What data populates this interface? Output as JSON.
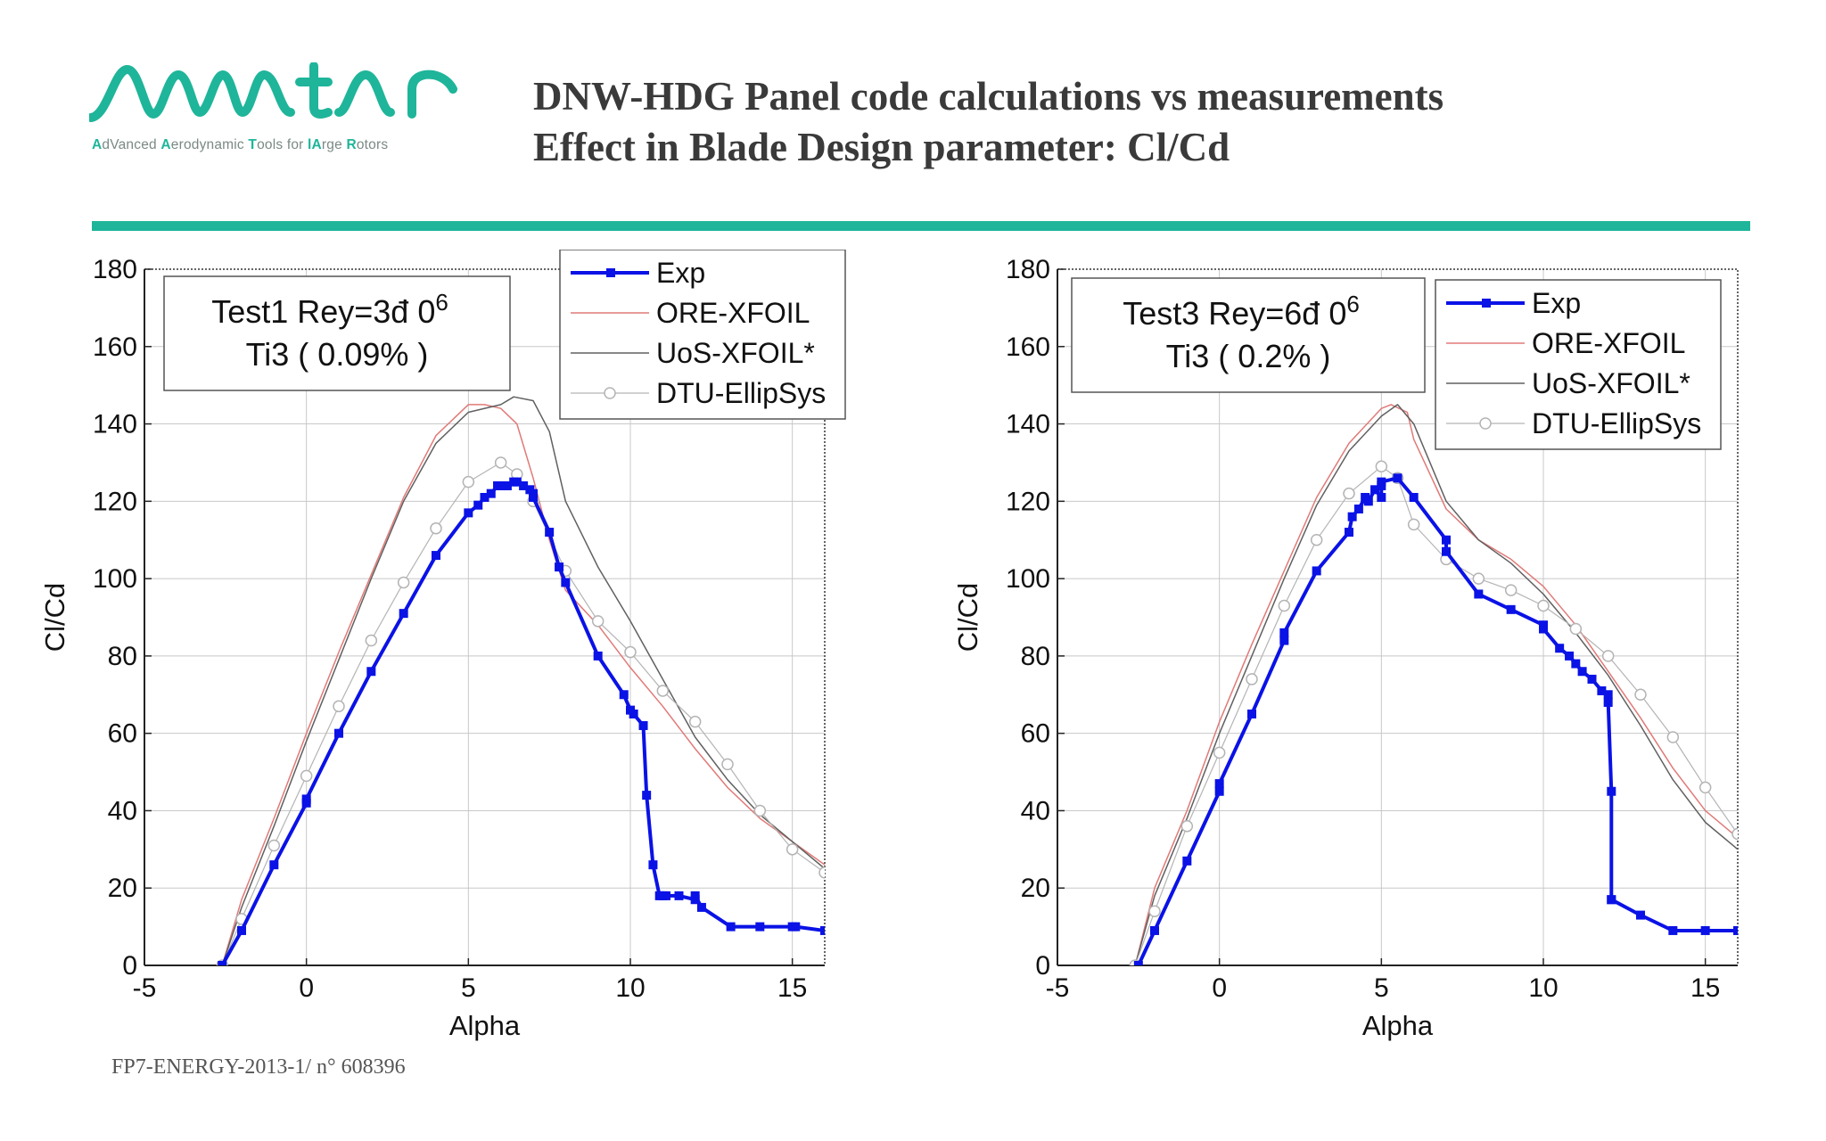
{
  "colors": {
    "accent": "#1fb59a",
    "exp": "#0a12e6",
    "ore": "#e07a78",
    "uos": "#606060",
    "dtu": "#b4b4b4"
  },
  "logo": {
    "wordmark": "Avatar",
    "tagline": [
      {
        "t": "A",
        "b": true
      },
      {
        "t": "dVanced ",
        "b": false
      },
      {
        "t": "A",
        "b": true
      },
      {
        "t": "erodynamic ",
        "b": false
      },
      {
        "t": "T",
        "b": true
      },
      {
        "t": "ools for ",
        "b": false
      },
      {
        "t": "lA",
        "b": true
      },
      {
        "t": "rge ",
        "b": false
      },
      {
        "t": "R",
        "b": true
      },
      {
        "t": "otors",
        "b": false
      }
    ]
  },
  "header": {
    "title_line1": "DNW-HDG Panel code calculations vs measurements",
    "title_line2": "Effect in Blade Design parameter: Cl/Cd"
  },
  "footer": {
    "text": "FP7-ENERGY-2013-1/ n° 608396"
  },
  "chart_data": [
    {
      "type": "line",
      "annotation_line1": "Test1 Rey=3đ 0",
      "annotation_sup": "6",
      "annotation_line2": "Ti3 ( 0.09% )",
      "xlabel": "Alpha",
      "ylabel": "Cl/Cd",
      "xlim": [
        -5,
        16
      ],
      "ylim": [
        0,
        180
      ],
      "xticks": [
        -5,
        0,
        5,
        10,
        15
      ],
      "yticks": [
        0,
        20,
        40,
        60,
        80,
        100,
        120,
        140,
        160,
        180
      ],
      "grid": true,
      "legend_position": "top-right",
      "series": [
        {
          "name": "Exp",
          "x": [
            -2.6,
            -2,
            -1,
            0,
            0,
            1,
            2,
            3,
            4,
            5,
            5.3,
            5.5,
            5.7,
            5.9,
            6,
            6.2,
            6.4,
            6.5,
            6.7,
            6.9,
            7,
            7,
            7.5,
            7.8,
            8,
            9,
            9.8,
            10,
            10.1,
            10.4,
            10.5,
            10.7,
            10.9,
            11,
            11.1,
            11.5,
            12,
            12,
            12.2,
            13.1,
            14,
            15,
            15.1,
            16
          ],
          "y": [
            0,
            9,
            26,
            42,
            43,
            60,
            76,
            91,
            106,
            117,
            119,
            121,
            122,
            124,
            124,
            124,
            125,
            125,
            124,
            123,
            122,
            121,
            112,
            103,
            99,
            80,
            70,
            66,
            65,
            62,
            44,
            26,
            18,
            18,
            18,
            18,
            17,
            18,
            15,
            10,
            10,
            10,
            10,
            9
          ]
        },
        {
          "name": "ORE-XFOIL",
          "x": [
            -2.6,
            -2,
            -1,
            0,
            1,
            2,
            3,
            4,
            5,
            5.5,
            6,
            6.5,
            7,
            7.5,
            8,
            9,
            10,
            11,
            12,
            13,
            14,
            15,
            16
          ],
          "y": [
            0,
            17,
            38,
            60,
            81,
            101,
            121,
            137,
            145,
            145,
            144,
            140,
            126,
            110,
            97,
            88,
            77,
            67,
            56,
            46,
            38,
            32,
            26
          ]
        },
        {
          "name": "UoS-XFOIL*",
          "x": [
            -2.6,
            -2,
            -1,
            0,
            1,
            2,
            3,
            4,
            5,
            6,
            6.4,
            7,
            7.5,
            8,
            9,
            10,
            11,
            12,
            13,
            14,
            15,
            16
          ],
          "y": [
            0,
            15,
            36,
            58,
            79,
            100,
            120,
            135,
            143,
            145,
            147,
            146,
            138,
            120,
            103,
            89,
            74,
            59,
            48,
            39,
            32,
            25
          ]
        },
        {
          "name": "DTU-EllipSys",
          "x": [
            -2.6,
            -2,
            -1,
            0,
            1,
            2,
            3,
            4,
            5,
            6,
            6.5,
            7,
            8,
            9,
            10,
            11,
            12,
            13,
            14,
            15,
            16
          ],
          "y": [
            0,
            12,
            31,
            49,
            67,
            84,
            99,
            113,
            125,
            130,
            127,
            120,
            102,
            89,
            81,
            71,
            63,
            52,
            40,
            30,
            24
          ]
        }
      ]
    },
    {
      "type": "line",
      "annotation_line1": "Test3 Rey=6đ 0",
      "annotation_sup": "6",
      "annotation_line2": "Ti3 ( 0.2% )",
      "xlabel": "Alpha",
      "ylabel": "Cl/Cd",
      "xlim": [
        -5,
        16
      ],
      "ylim": [
        0,
        180
      ],
      "xticks": [
        -5,
        0,
        5,
        10,
        15
      ],
      "yticks": [
        0,
        20,
        40,
        60,
        80,
        100,
        120,
        140,
        160,
        180
      ],
      "grid": true,
      "legend_position": "top-right",
      "series": [
        {
          "name": "Exp",
          "x": [
            -2.5,
            -2,
            -1,
            0,
            0,
            1,
            2,
            2,
            3,
            4,
            4.1,
            4.3,
            4.5,
            4.6,
            4.8,
            5,
            5,
            5,
            5.5,
            6,
            7,
            7,
            8,
            9,
            10,
            10,
            10.5,
            10.8,
            11,
            11.2,
            11.5,
            11.8,
            12,
            12,
            12.1,
            12.1,
            12.1,
            13,
            14,
            15,
            16
          ],
          "y": [
            0,
            9,
            27,
            45,
            47,
            65,
            84,
            86,
            102,
            112,
            116,
            118,
            121,
            120,
            123,
            121,
            124,
            125,
            126,
            121,
            110,
            107,
            96,
            92,
            88,
            87,
            82,
            80,
            78,
            76,
            74,
            71,
            70,
            68,
            45,
            17,
            17,
            13,
            9,
            9,
            9
          ]
        },
        {
          "name": "ORE-XFOIL",
          "x": [
            -2.6,
            -2,
            -1,
            0,
            1,
            2,
            3,
            4,
            5,
            5.3,
            5.8,
            6,
            7,
            8,
            9,
            10,
            11,
            12,
            13,
            14,
            15,
            16
          ],
          "y": [
            0,
            20,
            40,
            63,
            83,
            102,
            121,
            135,
            144,
            145,
            143,
            136,
            118,
            110,
            105,
            98,
            88,
            76,
            64,
            51,
            40,
            33
          ]
        },
        {
          "name": "UoS-XFOIL*",
          "x": [
            -2.6,
            -2,
            -1,
            0,
            1,
            2,
            3,
            4,
            5,
            5.5,
            6,
            7,
            8,
            9,
            10,
            11,
            12,
            13,
            14,
            15,
            16
          ],
          "y": [
            0,
            18,
            38,
            60,
            80,
            100,
            119,
            133,
            142,
            145,
            140,
            120,
            110,
            104,
            96,
            86,
            75,
            62,
            48,
            37,
            30
          ]
        },
        {
          "name": "DTU-EllipSys",
          "x": [
            -2.6,
            -2,
            -1,
            0,
            1,
            2,
            3,
            4,
            5,
            5.5,
            6,
            7,
            8,
            9,
            10,
            11,
            12,
            13,
            14,
            15,
            16
          ],
          "y": [
            0,
            14,
            36,
            55,
            74,
            93,
            110,
            122,
            129,
            126,
            114,
            105,
            100,
            97,
            93,
            87,
            80,
            70,
            59,
            46,
            34
          ]
        }
      ]
    }
  ]
}
